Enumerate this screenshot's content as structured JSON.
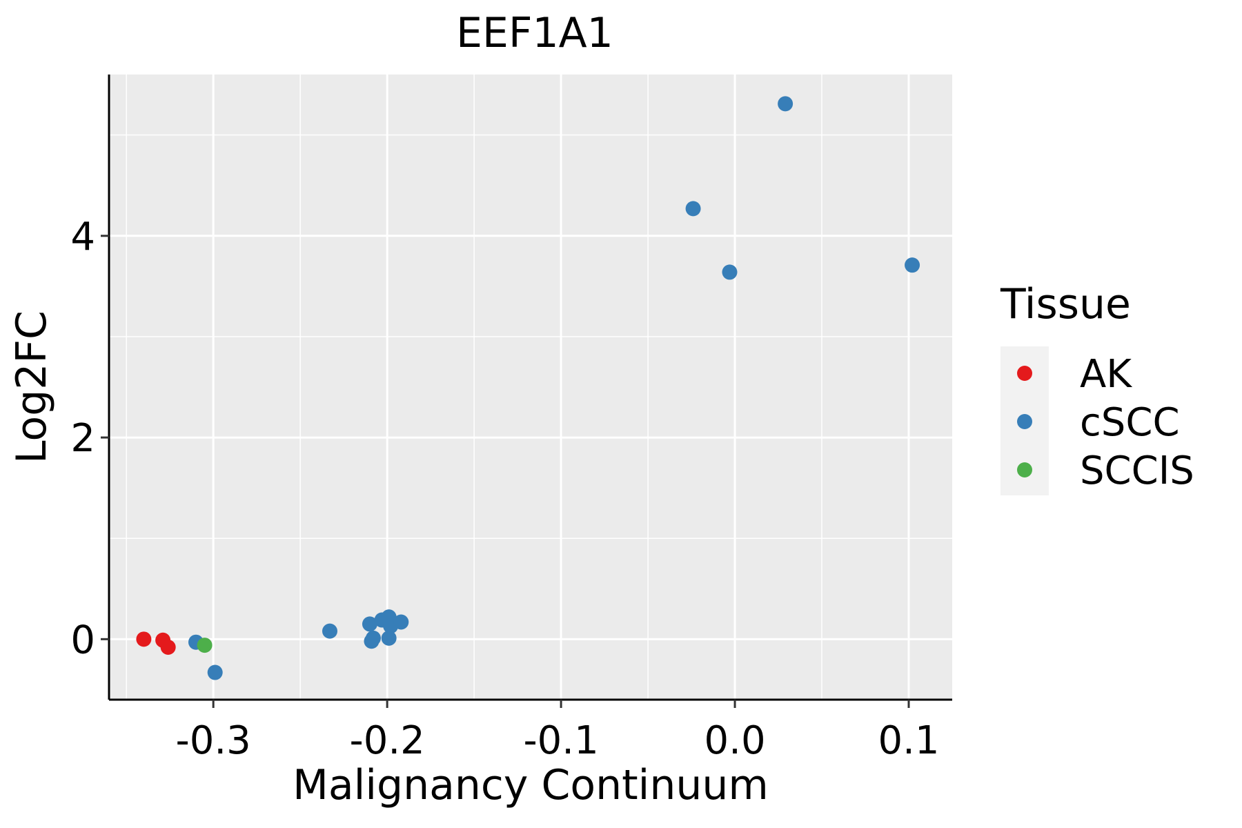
{
  "chart_data": {
    "type": "scatter",
    "title": "EEF1A1",
    "xlabel": "Malignancy Continuum",
    "ylabel": "Log2FC",
    "xlim": [
      -0.36,
      0.125
    ],
    "ylim": [
      -0.6,
      5.6
    ],
    "x_ticks": [
      -0.3,
      -0.2,
      -0.1,
      0.0,
      0.1
    ],
    "x_tick_labels": [
      "-0.3",
      "-0.2",
      "-0.1",
      "0.0",
      "0.1"
    ],
    "y_ticks": [
      0,
      2,
      4
    ],
    "y_tick_labels": [
      "0",
      "2",
      "4"
    ],
    "grid": true,
    "legend": {
      "title": "Tissue",
      "position": "right",
      "entries": [
        {
          "label": "AK",
          "color": "#E41A1C"
        },
        {
          "label": "cSCC",
          "color": "#377EB8"
        },
        {
          "label": "SCCIS",
          "color": "#4DAF4A"
        }
      ]
    },
    "series": [
      {
        "name": "AK",
        "color": "#E41A1C",
        "points": [
          {
            "x": -0.34,
            "y": 0.0
          },
          {
            "x": -0.329,
            "y": -0.01
          },
          {
            "x": -0.326,
            "y": -0.08
          }
        ]
      },
      {
        "name": "cSCC",
        "color": "#377EB8",
        "points": [
          {
            "x": -0.31,
            "y": -0.03
          },
          {
            "x": -0.299,
            "y": -0.33
          },
          {
            "x": -0.233,
            "y": 0.08
          },
          {
            "x": -0.21,
            "y": 0.15
          },
          {
            "x": -0.208,
            "y": 0.01
          },
          {
            "x": -0.209,
            "y": -0.02
          },
          {
            "x": -0.203,
            "y": 0.19
          },
          {
            "x": -0.199,
            "y": 0.22
          },
          {
            "x": -0.198,
            "y": 0.13
          },
          {
            "x": -0.199,
            "y": 0.01
          },
          {
            "x": -0.192,
            "y": 0.17
          },
          {
            "x": -0.024,
            "y": 4.27
          },
          {
            "x": -0.003,
            "y": 3.64
          },
          {
            "x": 0.029,
            "y": 5.31
          },
          {
            "x": 0.102,
            "y": 3.71
          }
        ]
      },
      {
        "name": "SCCIS",
        "color": "#4DAF4A",
        "points": [
          {
            "x": -0.305,
            "y": -0.06
          }
        ]
      }
    ]
  }
}
